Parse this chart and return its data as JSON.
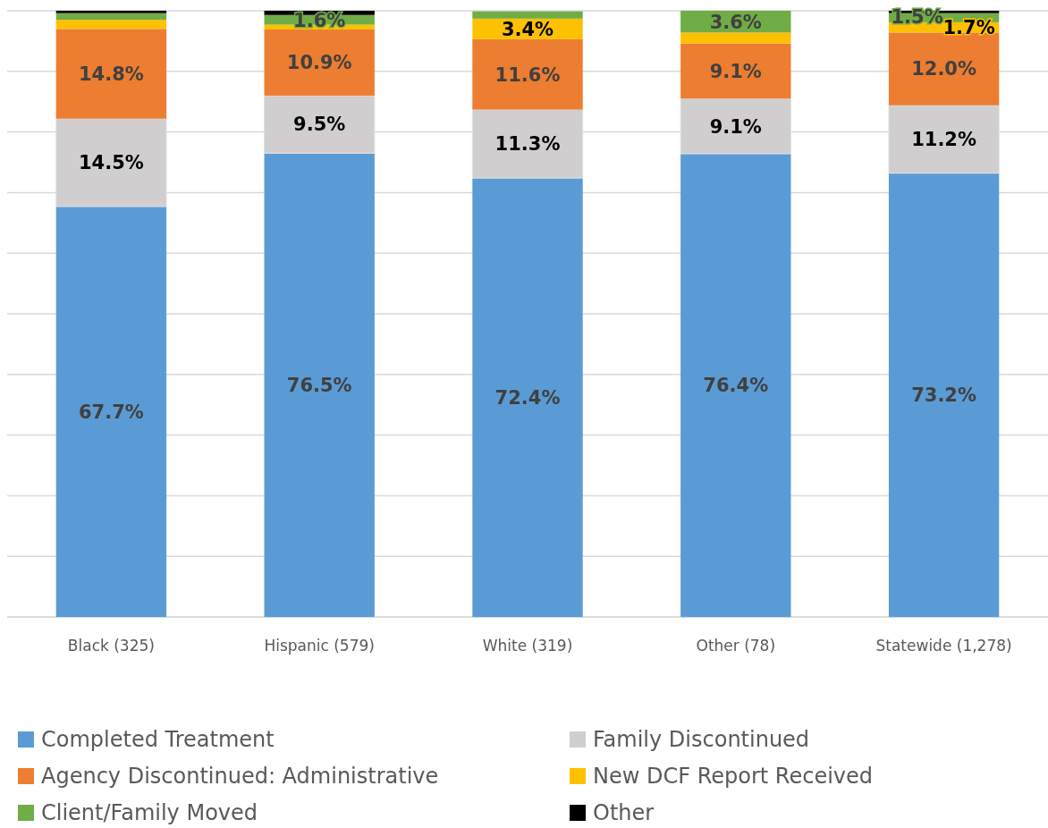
{
  "chart_data": {
    "type": "bar",
    "stacked": true,
    "categories": [
      "Black (325)",
      "Hispanic (579)",
      "White (319)",
      "Other (78)",
      "Statewide (1,278)"
    ],
    "series": [
      {
        "name": "Completed Treatment",
        "color": "#5b9bd5",
        "values": [
          67.7,
          76.5,
          72.4,
          76.4,
          73.2
        ],
        "value_labels": [
          "67.7%",
          "76.5%",
          "72.4%",
          "76.4%",
          "73.2%"
        ]
      },
      {
        "name": "Family Discontinued",
        "color": "#d0cece",
        "values": [
          14.5,
          9.5,
          11.3,
          9.1,
          11.2
        ],
        "value_labels": [
          "14.5%",
          "9.5%",
          "11.3%",
          "9.1%",
          "11.2%"
        ]
      },
      {
        "name": "Agency Discontinued: Administrative",
        "color": "#ed7d31",
        "values": [
          14.8,
          10.9,
          11.6,
          9.1,
          12.0
        ],
        "value_labels": [
          "14.8%",
          "10.9%",
          "11.6%",
          "9.1%",
          "12.0%"
        ]
      },
      {
        "name": "New DCF Report Received",
        "color": "#ffc000",
        "values": [
          1.5,
          0.8,
          3.4,
          1.8,
          1.7
        ],
        "value_labels": [
          null,
          null,
          "3.4%",
          null,
          "1.7%"
        ]
      },
      {
        "name": "Client/Family Moved",
        "color": "#70ad47",
        "values": [
          1.1,
          1.6,
          1.2,
          3.6,
          1.5
        ],
        "value_labels": [
          null,
          "1.6%",
          null,
          "3.6%",
          "1.5%"
        ]
      },
      {
        "name": "Other",
        "color": "#000000",
        "values": [
          0.4,
          0.7,
          0,
          0,
          0.4
        ],
        "value_labels": [
          null,
          null,
          null,
          null,
          null
        ]
      }
    ],
    "ylim": [
      0,
      100
    ],
    "yticks": [
      {
        "value": 0,
        "label": null
      },
      {
        "value": 10,
        "label": null
      },
      {
        "value": 20,
        "label": null
      },
      {
        "value": 30,
        "label": null
      },
      {
        "value": 40,
        "label": null
      },
      {
        "value": 50,
        "label": null
      },
      {
        "value": 60,
        "label": null
      },
      {
        "value": 70,
        "label": null
      },
      {
        "value": 80,
        "label": null
      },
      {
        "value": 90,
        "label": null
      },
      {
        "value": 100,
        "label": null
      }
    ],
    "grid": "y",
    "legend": "bottom",
    "tick_labels": "x"
  }
}
